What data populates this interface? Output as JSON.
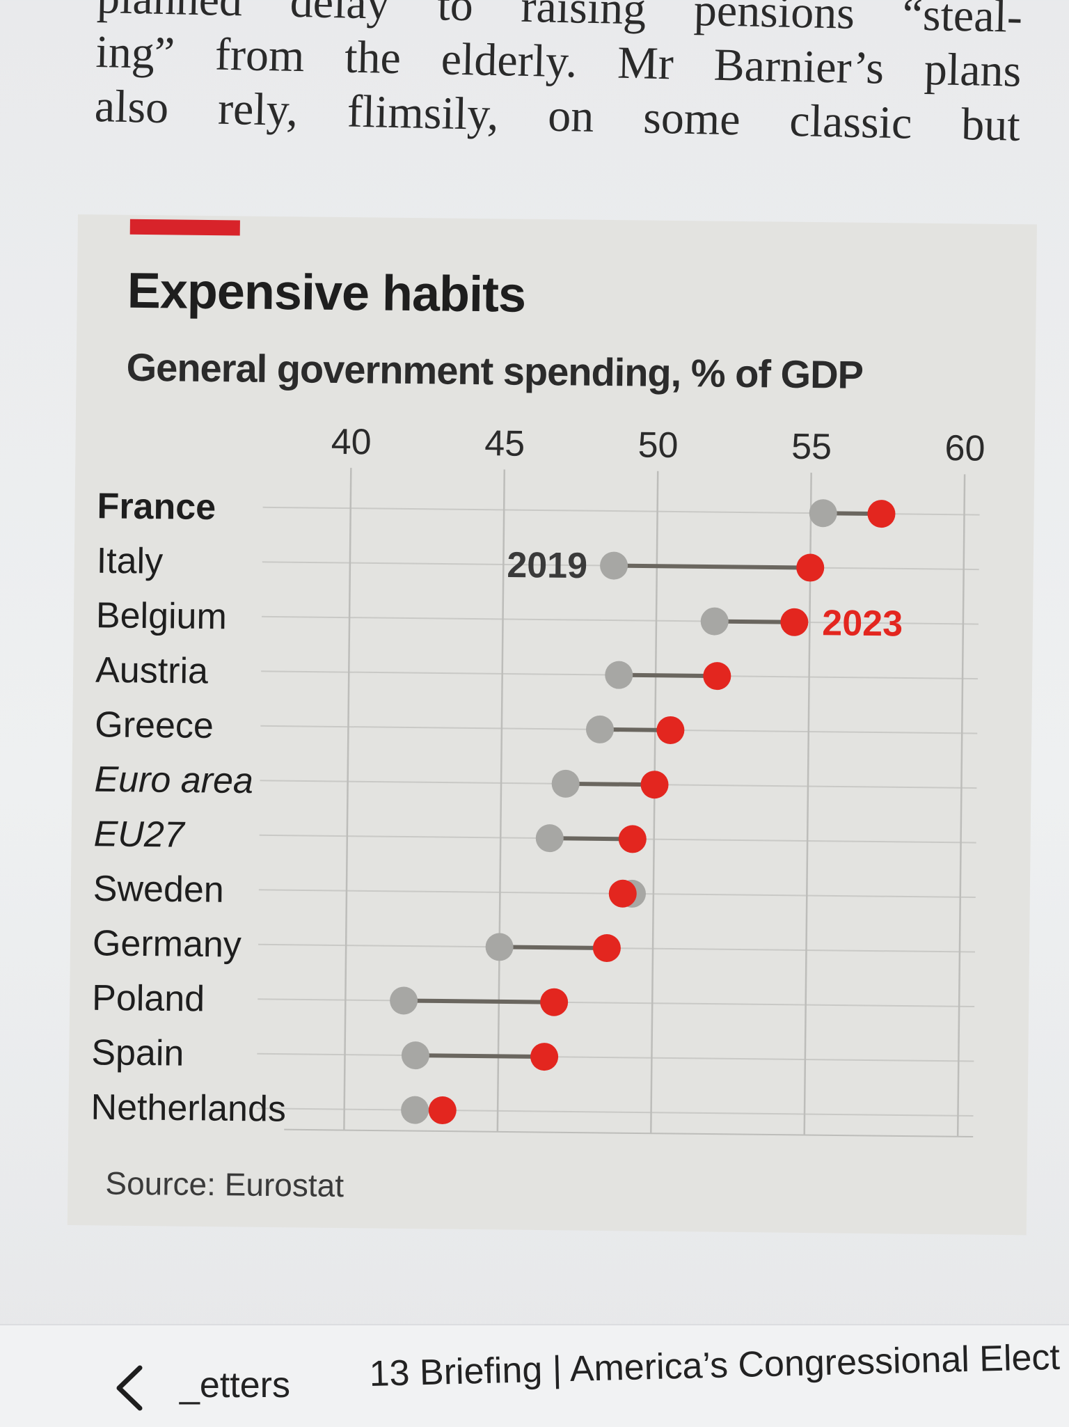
{
  "article": {
    "lines": [
      "planned delay to raising pensions “steal-",
      "ing” from the elderly. Mr Barnier’s plans",
      "also rely, flimsily, on some classic but"
    ]
  },
  "chart": {
    "title": "Expensive habits",
    "subtitle": "General government spending, % of GDP",
    "source": "Source: Eurostat"
  },
  "chart_data": {
    "type": "dot-range",
    "title": "Expensive habits",
    "subtitle": "General government spending, % of GDP",
    "xlim": [
      38.5,
      60.5
    ],
    "xticks": [
      40,
      45,
      50,
      55,
      60
    ],
    "series": [
      {
        "name": "2019",
        "color": "#a7a7a4"
      },
      {
        "name": "2023",
        "color": "#e3261f"
      }
    ],
    "annotations": {
      "y2019": "2019",
      "y2023": "2023"
    },
    "countries": [
      {
        "name": "France",
        "v2019": 55.4,
        "v2023": 57.3,
        "style": "bold"
      },
      {
        "name": "Italy",
        "v2019": 48.6,
        "v2023": 55.0,
        "style": "normal"
      },
      {
        "name": "Belgium",
        "v2019": 51.9,
        "v2023": 54.5,
        "style": "normal"
      },
      {
        "name": "Austria",
        "v2019": 48.8,
        "v2023": 52.0,
        "style": "normal"
      },
      {
        "name": "Greece",
        "v2019": 48.2,
        "v2023": 50.5,
        "style": "normal"
      },
      {
        "name": "Euro area",
        "v2019": 47.1,
        "v2023": 50.0,
        "style": "italic"
      },
      {
        "name": "EU27",
        "v2019": 46.6,
        "v2023": 49.3,
        "style": "italic"
      },
      {
        "name": "Sweden",
        "v2019": 49.3,
        "v2023": 49.0,
        "style": "normal"
      },
      {
        "name": "Germany",
        "v2019": 45.0,
        "v2023": 48.5,
        "style": "normal"
      },
      {
        "name": "Poland",
        "v2019": 41.9,
        "v2023": 46.8,
        "style": "normal"
      },
      {
        "name": "Spain",
        "v2019": 42.3,
        "v2023": 46.5,
        "style": "normal"
      },
      {
        "name": "Netherlands",
        "v2019": 42.3,
        "v2023": 43.2,
        "style": "normal"
      }
    ],
    "source": "Source: Eurostat"
  },
  "nav": {
    "back_label": "_etters",
    "next_label": "13 Briefing | America’s Congressional Elect"
  }
}
